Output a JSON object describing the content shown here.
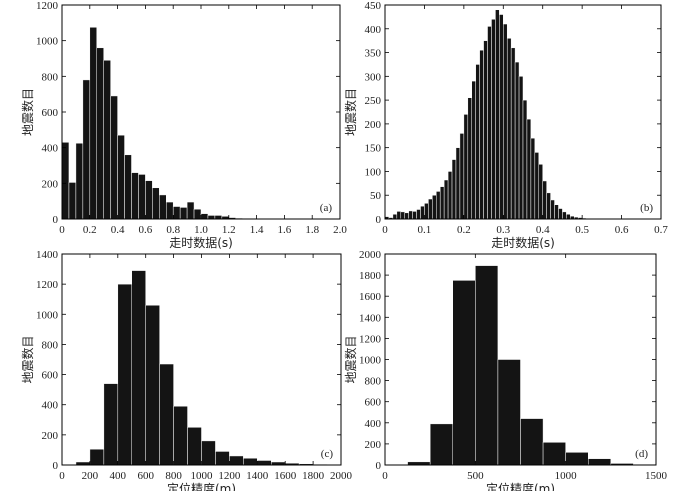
{
  "chart_data": [
    {
      "type": "bar",
      "panel_label": "(a)",
      "xlabel": "走时数据(s)",
      "ylabel": "地震数目",
      "xlim": [
        0,
        2.0
      ],
      "ylim": [
        0,
        1200
      ],
      "xticks": [
        0,
        0.2,
        0.4,
        0.6,
        0.8,
        1.0,
        1.2,
        1.4,
        1.6,
        1.8,
        2.0
      ],
      "xtick_labels": [
        "0",
        "0.2",
        "0.4",
        "0.6",
        "0.8",
        "1.0",
        "1.2",
        "1.4",
        "1.6",
        "1.8",
        "2.0"
      ],
      "yticks": [
        0,
        200,
        400,
        600,
        800,
        1000,
        1200
      ],
      "bin_width": 0.05,
      "bins_start": 0,
      "values": [
        430,
        205,
        425,
        780,
        1075,
        960,
        890,
        690,
        470,
        360,
        260,
        250,
        215,
        175,
        135,
        95,
        70,
        65,
        95,
        55,
        30,
        20,
        20,
        15,
        8,
        5,
        4,
        3,
        2,
        2,
        1,
        1,
        1,
        1,
        1,
        1,
        0,
        0,
        1,
        0
      ]
    },
    {
      "type": "bar",
      "panel_label": "(b)",
      "xlabel": "走时数据(s)",
      "ylabel": "地震数目",
      "xlim": [
        0,
        0.7
      ],
      "ylim": [
        0,
        450
      ],
      "xticks": [
        0,
        0.1,
        0.2,
        0.3,
        0.4,
        0.5,
        0.6,
        0.7
      ],
      "xtick_labels": [
        "0",
        "0.1",
        "0.2",
        "0.3",
        "0.4",
        "0.5",
        "0.6",
        "0.7"
      ],
      "yticks": [
        0,
        50,
        100,
        150,
        200,
        250,
        300,
        350,
        400,
        450
      ],
      "bin_width": 0.01,
      "bins_start": 0,
      "values": [
        5,
        3,
        10,
        16,
        15,
        13,
        17,
        16,
        20,
        27,
        33,
        42,
        50,
        58,
        68,
        82,
        100,
        125,
        150,
        180,
        220,
        255,
        290,
        325,
        355,
        375,
        405,
        420,
        440,
        430,
        410,
        380,
        360,
        330,
        300,
        250,
        210,
        170,
        140,
        115,
        80,
        55,
        40,
        30,
        22,
        15,
        10,
        6,
        4,
        3,
        2,
        1,
        1,
        1,
        0,
        0,
        0,
        0,
        0,
        0,
        0,
        0,
        0,
        0,
        0,
        0,
        0,
        0,
        0,
        0
      ]
    },
    {
      "type": "bar",
      "panel_label": "(c)",
      "xlabel": "定位精度(m)",
      "ylabel": "地震数目",
      "xlim": [
        0,
        2000
      ],
      "ylim": [
        0,
        1400
      ],
      "xticks": [
        0,
        200,
        400,
        600,
        800,
        1000,
        1200,
        1400,
        1600,
        1800,
        2000
      ],
      "xtick_labels": [
        "0",
        "200",
        "400",
        "600",
        "800",
        "1000",
        "1200",
        "1400",
        "1600",
        "1800",
        "2000"
      ],
      "yticks": [
        0,
        200,
        400,
        600,
        800,
        1000,
        1200,
        1400
      ],
      "bin_width": 100,
      "bins_start": 100,
      "values": [
        20,
        105,
        540,
        1200,
        1290,
        1060,
        670,
        390,
        250,
        160,
        90,
        60,
        45,
        30,
        20,
        12,
        8,
        4,
        3
      ]
    },
    {
      "type": "bar",
      "panel_label": "(d)",
      "xlabel": "定位精度(m)",
      "ylabel": "地震数目",
      "xlim": [
        0,
        1500
      ],
      "ylim": [
        0,
        2000
      ],
      "xticks": [
        0,
        500,
        1000,
        1500
      ],
      "xtick_labels": [
        "0",
        "500",
        "1000",
        "1500"
      ],
      "yticks": [
        0,
        200,
        400,
        600,
        800,
        1000,
        1200,
        1400,
        1600,
        1800,
        2000
      ],
      "bin_width": 125,
      "bins_start": 0,
      "values": [
        0,
        30,
        390,
        1750,
        1890,
        1000,
        440,
        215,
        120,
        60,
        15,
        5
      ]
    }
  ]
}
